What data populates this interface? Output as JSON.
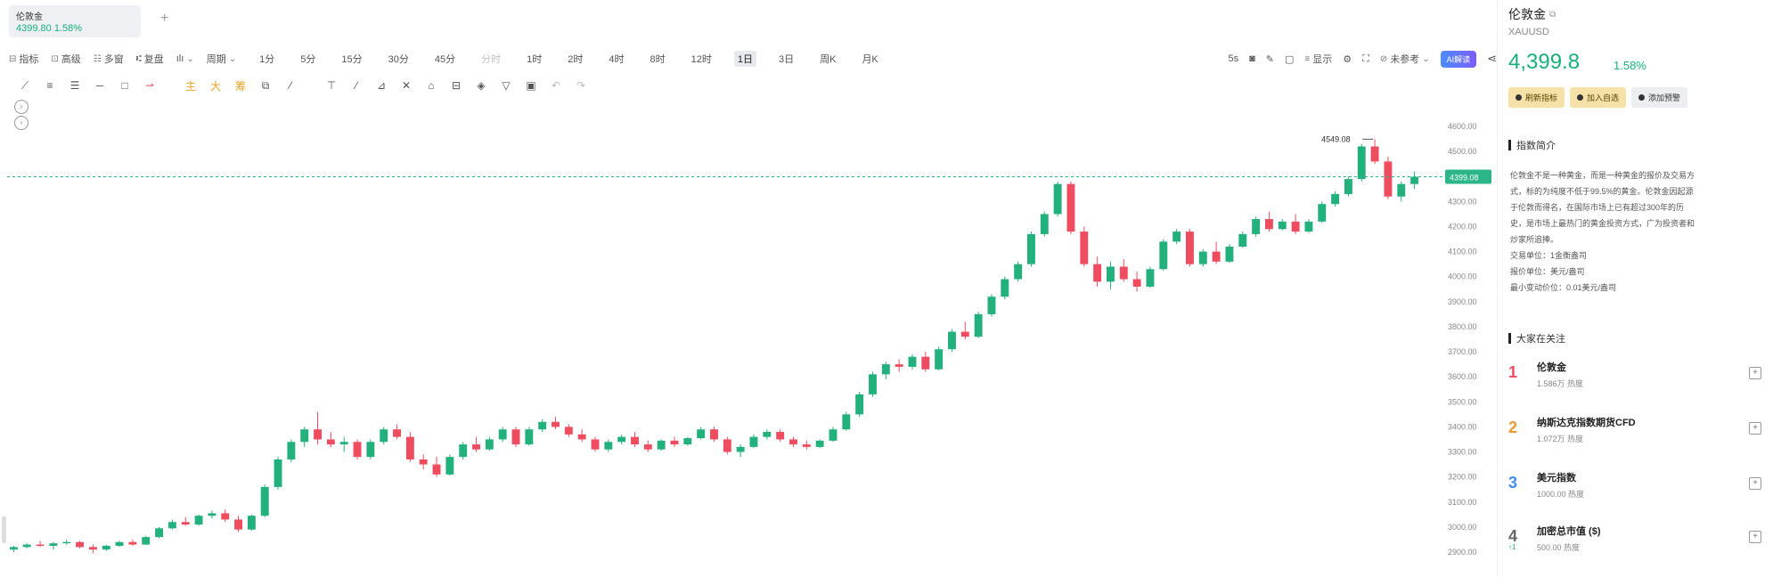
{
  "tab": {
    "name": "伦敦金",
    "price_line": "4399.80 1.58%",
    "add_label": "+"
  },
  "toolbar": {
    "indicator": "指标",
    "high": "高级",
    "multi": "多窗",
    "replay": "复盘",
    "chart_style": "ılı",
    "period_menu": "周期",
    "periods": [
      "1分",
      "5分",
      "15分",
      "30分",
      "45分",
      "分时",
      "1时",
      "2时",
      "4时",
      "8时",
      "12时",
      "1日",
      "3日",
      "周K",
      "月K"
    ],
    "disabled_period": "分时",
    "active_period": "1日",
    "right_refresh": "5s",
    "display": "显示",
    "ref_label": "未参考",
    "ai_label": "AI解读",
    "share": "<"
  },
  "drawing_tools": [
    "⟋",
    "≡",
    "☰",
    "─",
    "□",
    "⇀",
    "主",
    "大",
    "筹",
    "⧉",
    "⁄",
    "⊤",
    "⁄",
    "⊿",
    "✕",
    "⌂",
    "⊟",
    "◈",
    "▽",
    "▣",
    "↶",
    "↷"
  ],
  "chart": {
    "price_labels": [
      "4600.00",
      "4500.00",
      "4300.00",
      "4200.00",
      "4100.00",
      "4000.00",
      "3900.00",
      "3800.00",
      "3700.00",
      "3600.00",
      "3500.00",
      "3400.00",
      "3300.00",
      "3200.00",
      "3100.00",
      "3000.00",
      "2900.00"
    ],
    "current_price_tag": "4399.08",
    "high_annotation": "4549.08",
    "up_color": "#22b07d",
    "down_color": "#ef4d5f",
    "dash_color": "#2db58a"
  },
  "chart_data": {
    "type": "candlestick",
    "current_price": 4399.08,
    "max_high": 4549.08,
    "ohlc": [
      [
        2910,
        2925,
        2900,
        2920
      ],
      [
        2920,
        2935,
        2915,
        2930
      ],
      [
        2930,
        2945,
        2920,
        2925
      ],
      [
        2925,
        2940,
        2910,
        2935
      ],
      [
        2935,
        2950,
        2930,
        2940
      ],
      [
        2940,
        2945,
        2915,
        2920
      ],
      [
        2920,
        2930,
        2895,
        2910
      ],
      [
        2910,
        2930,
        2905,
        2925
      ],
      [
        2925,
        2945,
        2920,
        2940
      ],
      [
        2940,
        2950,
        2925,
        2930
      ],
      [
        2930,
        2965,
        2928,
        2960
      ],
      [
        2960,
        3000,
        2955,
        2995
      ],
      [
        2995,
        3030,
        2990,
        3020
      ],
      [
        3020,
        3040,
        3005,
        3010
      ],
      [
        3010,
        3050,
        3005,
        3045
      ],
      [
        3045,
        3065,
        3035,
        3055
      ],
      [
        3055,
        3070,
        3020,
        3030
      ],
      [
        3030,
        3045,
        2980,
        2990
      ],
      [
        2990,
        3050,
        2985,
        3045
      ],
      [
        3045,
        3170,
        3040,
        3160
      ],
      [
        3160,
        3280,
        3150,
        3270
      ],
      [
        3270,
        3350,
        3260,
        3340
      ],
      [
        3340,
        3400,
        3320,
        3390
      ],
      [
        3390,
        3460,
        3330,
        3350
      ],
      [
        3350,
        3380,
        3320,
        3330
      ],
      [
        3330,
        3360,
        3300,
        3340
      ],
      [
        3340,
        3350,
        3270,
        3280
      ],
      [
        3280,
        3350,
        3270,
        3340
      ],
      [
        3340,
        3400,
        3330,
        3390
      ],
      [
        3390,
        3410,
        3350,
        3360
      ],
      [
        3360,
        3380,
        3260,
        3270
      ],
      [
        3270,
        3290,
        3230,
        3250
      ],
      [
        3250,
        3280,
        3200,
        3210
      ],
      [
        3210,
        3290,
        3205,
        3280
      ],
      [
        3280,
        3340,
        3270,
        3330
      ],
      [
        3330,
        3360,
        3300,
        3310
      ],
      [
        3310,
        3360,
        3305,
        3350
      ],
      [
        3350,
        3400,
        3340,
        3390
      ],
      [
        3390,
        3400,
        3320,
        3330
      ],
      [
        3330,
        3400,
        3325,
        3390
      ],
      [
        3390,
        3430,
        3380,
        3420
      ],
      [
        3420,
        3440,
        3390,
        3400
      ],
      [
        3400,
        3410,
        3360,
        3370
      ],
      [
        3370,
        3390,
        3340,
        3350
      ],
      [
        3350,
        3360,
        3300,
        3310
      ],
      [
        3310,
        3350,
        3300,
        3340
      ],
      [
        3340,
        3370,
        3330,
        3360
      ],
      [
        3360,
        3380,
        3320,
        3330
      ],
      [
        3330,
        3345,
        3300,
        3310
      ],
      [
        3310,
        3350,
        3305,
        3345
      ],
      [
        3345,
        3360,
        3320,
        3330
      ],
      [
        3330,
        3360,
        3325,
        3355
      ],
      [
        3355,
        3400,
        3350,
        3390
      ],
      [
        3390,
        3400,
        3340,
        3350
      ],
      [
        3350,
        3360,
        3290,
        3300
      ],
      [
        3300,
        3330,
        3280,
        3320
      ],
      [
        3320,
        3370,
        3315,
        3360
      ],
      [
        3360,
        3390,
        3350,
        3380
      ],
      [
        3380,
        3390,
        3340,
        3350
      ],
      [
        3350,
        3360,
        3320,
        3330
      ],
      [
        3330,
        3345,
        3310,
        3320
      ],
      [
        3320,
        3350,
        3315,
        3345
      ],
      [
        3345,
        3400,
        3340,
        3390
      ],
      [
        3390,
        3460,
        3385,
        3450
      ],
      [
        3450,
        3540,
        3440,
        3530
      ],
      [
        3530,
        3620,
        3520,
        3610
      ],
      [
        3610,
        3660,
        3590,
        3650
      ],
      [
        3650,
        3670,
        3620,
        3640
      ],
      [
        3640,
        3690,
        3630,
        3680
      ],
      [
        3680,
        3700,
        3620,
        3630
      ],
      [
        3630,
        3720,
        3625,
        3710
      ],
      [
        3710,
        3790,
        3700,
        3780
      ],
      [
        3780,
        3820,
        3750,
        3760
      ],
      [
        3760,
        3860,
        3755,
        3850
      ],
      [
        3850,
        3930,
        3840,
        3920
      ],
      [
        3920,
        4000,
        3910,
        3990
      ],
      [
        3990,
        4060,
        3980,
        4050
      ],
      [
        4050,
        4180,
        4040,
        4170
      ],
      [
        4170,
        4260,
        4160,
        4250
      ],
      [
        4250,
        4380,
        4240,
        4370
      ],
      [
        4370,
        4380,
        4170,
        4180
      ],
      [
        4180,
        4200,
        4040,
        4050
      ],
      [
        4050,
        4080,
        3960,
        3980
      ],
      [
        3980,
        4060,
        3950,
        4040
      ],
      [
        4040,
        4070,
        3980,
        3990
      ],
      [
        3990,
        4020,
        3940,
        3960
      ],
      [
        3960,
        4040,
        3955,
        4030
      ],
      [
        4030,
        4150,
        4025,
        4140
      ],
      [
        4140,
        4190,
        4130,
        4180
      ],
      [
        4180,
        4190,
        4040,
        4050
      ],
      [
        4050,
        4110,
        4040,
        4100
      ],
      [
        4100,
        4140,
        4050,
        4060
      ],
      [
        4060,
        4130,
        4055,
        4120
      ],
      [
        4120,
        4180,
        4115,
        4170
      ],
      [
        4170,
        4240,
        4160,
        4230
      ],
      [
        4230,
        4260,
        4180,
        4190
      ],
      [
        4190,
        4230,
        4185,
        4220
      ],
      [
        4220,
        4250,
        4170,
        4180
      ],
      [
        4180,
        4230,
        4175,
        4220
      ],
      [
        4220,
        4300,
        4215,
        4290
      ],
      [
        4290,
        4340,
        4280,
        4330
      ],
      [
        4330,
        4400,
        4320,
        4390
      ],
      [
        4390,
        4530,
        4380,
        4520
      ],
      [
        4520,
        4549,
        4450,
        4460
      ],
      [
        4460,
        4480,
        4310,
        4320
      ],
      [
        4320,
        4380,
        4300,
        4370
      ],
      [
        4370,
        4420,
        4350,
        4399
      ]
    ]
  },
  "panel": {
    "title": "伦敦金",
    "symbol": "XAUUSD",
    "price": "4,399.8",
    "pct": "1.58%",
    "buttons": [
      "刷新指标",
      "加入自选",
      "添加预警"
    ],
    "intro_title": "指数简介",
    "intro_lines": [
      "伦敦金不是一种黄金，而是一种黄金的报价及交易方",
      "式，标的为纯度不低于99.5%的黄金。伦敦金因起源",
      "于伦敦而得名，在国际市场上已有超过300年的历",
      "史，是市场上最热门的黄金投资方式，广为投资者和",
      "炒家所追捧。",
      "交易单位：1金衡盎司",
      "报价单位：美元/盎司",
      "最小变动价位：0.01美元/盎司"
    ],
    "hot_title": "大家在关注",
    "hot_list": [
      {
        "rank": "1",
        "name": "伦敦金",
        "heat": "1.586万 热度",
        "color": "#ef4d5f",
        "up": ""
      },
      {
        "rank": "2",
        "name": "纳斯达克指数期货CFD",
        "heat": "1.072万 热度",
        "color": "#f09a30",
        "up": ""
      },
      {
        "rank": "3",
        "name": "美元指数",
        "heat": "1000.00 热度",
        "color": "#3d8ef0",
        "up": ""
      },
      {
        "rank": "4",
        "name": "加密总市值 ($)",
        "heat": "500.00 热度",
        "color": "#666666",
        "up": "↑1"
      }
    ]
  }
}
